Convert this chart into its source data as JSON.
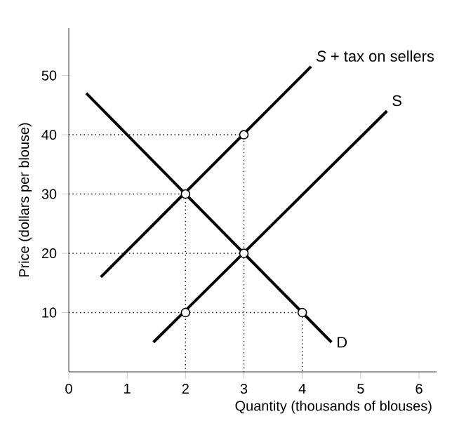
{
  "chart_data": {
    "type": "line",
    "xlabel": "Quantity (thousands of blouses)",
    "ylabel": "Price (dollars per blouse)",
    "xlim": [
      0,
      6.3
    ],
    "ylim": [
      0,
      58
    ],
    "xticks": [
      0,
      1,
      2,
      3,
      4,
      5,
      6
    ],
    "yticks": [
      10,
      20,
      30,
      40,
      50
    ],
    "grid": false,
    "series": [
      {
        "type": "line",
        "line_style": "dotted",
        "marker": "none",
        "color": "#000000",
        "x": [
          0,
          4,
          4,
          null,
          0,
          3,
          3,
          null,
          0,
          2,
          2,
          null,
          0,
          3
        ],
        "values": [
          10,
          10,
          0,
          null,
          40,
          40,
          0,
          null,
          30,
          30,
          0,
          null,
          20,
          20
        ]
      },
      {
        "name": "D",
        "marker": "none",
        "color": "#000000",
        "x": [
          0.3,
          4.5
        ],
        "values": [
          47,
          5
        ]
      },
      {
        "name": "S",
        "marker": "none",
        "color": "#000000",
        "x": [
          1.45,
          5.45
        ],
        "values": [
          5,
          44
        ]
      },
      {
        "name": "*S* + tax on sellers",
        "marker": "none",
        "color": "#000000",
        "x": [
          0.55,
          4.15
        ],
        "values": [
          16,
          51.5
        ]
      },
      {
        "type": "scatter",
        "marker": "circle",
        "color": "#000000",
        "x": [
          2,
          2,
          3,
          3,
          4
        ],
        "values": [
          10,
          30,
          20,
          40,
          10
        ]
      }
    ]
  }
}
